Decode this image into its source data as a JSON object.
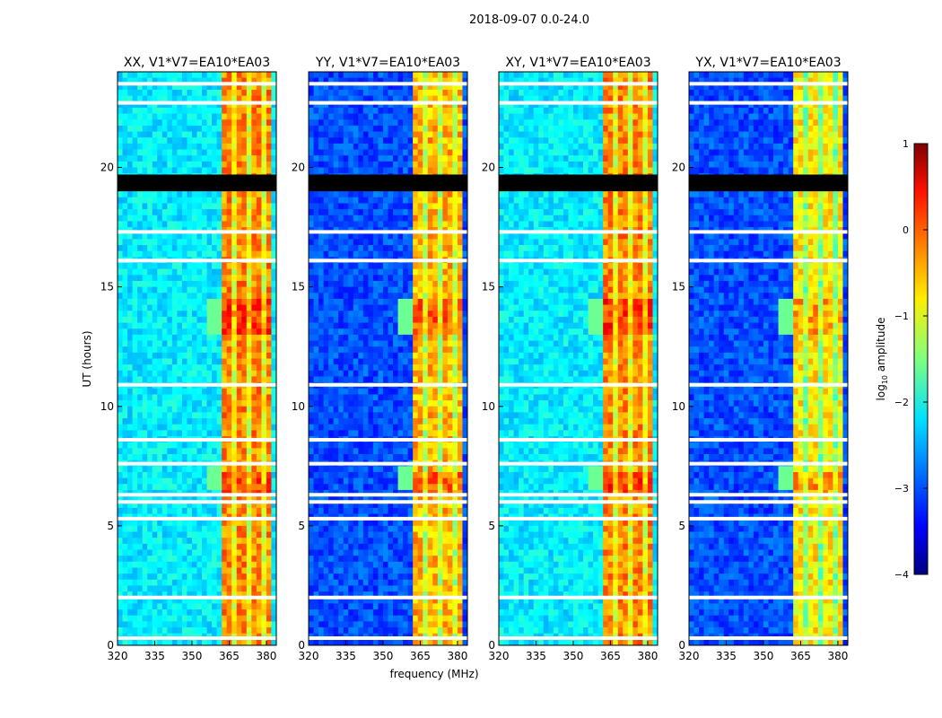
{
  "chart_data": {
    "type": "heatmap",
    "suptitle": "2018-09-07 0.0-24.0",
    "xlabel": "frequency (MHz)",
    "ylabel": "UT (hours)",
    "xlim": [
      320,
      384
    ],
    "ylim": [
      0,
      24
    ],
    "xticks": [
      "320",
      "335",
      "350",
      "365",
      "380"
    ],
    "xtick_values": [
      320,
      335,
      350,
      365,
      380
    ],
    "yticks": [
      "0",
      "5",
      "10",
      "15",
      "20"
    ],
    "ytick_values": [
      0,
      5,
      10,
      15,
      20
    ],
    "colormap": "jet",
    "panels": [
      {
        "title": "XX, V1*V7=EA10*EA03",
        "background_log_amp": -2.2,
        "band_log_amp": -0.3
      },
      {
        "title": "YY, V1*V7=EA10*EA03",
        "background_log_amp": -3.0,
        "band_log_amp": -0.5
      },
      {
        "title": "XY, V1*V7=EA10*EA03",
        "background_log_amp": -2.2,
        "band_log_amp": -0.3
      },
      {
        "title": "YX, V1*V7=EA10*EA03",
        "background_log_amp": -3.0,
        "band_log_amp": -0.8
      }
    ],
    "rfi_band_mhz": [
      362,
      381
    ],
    "flagged_black_hours": [
      [
        19.0,
        19.7
      ]
    ],
    "flagged_white_hours": [
      23.5,
      22.7,
      17.3,
      16.1,
      10.9,
      8.6,
      7.6,
      6.3,
      6.0,
      5.3,
      2.0,
      0.3
    ],
    "colorbar": {
      "label": "log10 amplitude",
      "label_main": "log",
      "label_sub": "10",
      "label_rest": " amplitude",
      "range": [
        -4,
        1
      ],
      "ticks": [
        "1",
        "0",
        "−1",
        "−2",
        "−3",
        "−4"
      ],
      "tick_values": [
        1,
        0,
        -1,
        -2,
        -3,
        -4
      ]
    }
  }
}
